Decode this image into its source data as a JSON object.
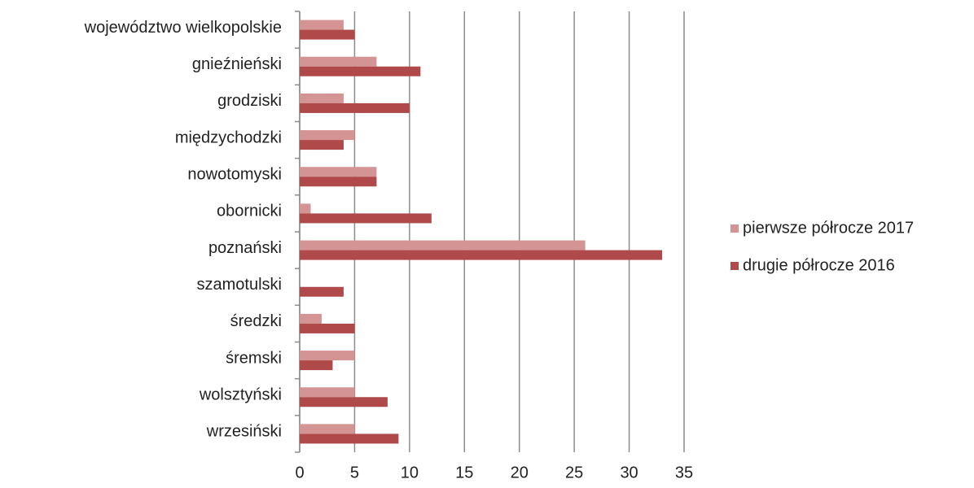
{
  "chart_data": {
    "type": "barh",
    "categories": [
      "województwo wielkopolskie",
      "gnieźnieński",
      "grodziski",
      "międzychodzki",
      "nowotomyski",
      "obornicki",
      "poznański",
      "szamotulski",
      "średzki",
      "śremski",
      "wolsztyński",
      "wrzesiński"
    ],
    "series": [
      {
        "name": "pierwsze półrocze 2017",
        "color": "#d49494",
        "values": [
          4,
          7,
          4,
          5,
          7,
          1,
          26,
          0,
          2,
          5,
          5,
          5
        ]
      },
      {
        "name": "drugie półrocze 2016",
        "color": "#b04a4a",
        "values": [
          5,
          11,
          10,
          4,
          7,
          12,
          33,
          4,
          5,
          3,
          8,
          9
        ]
      }
    ],
    "xlim": [
      0,
      35
    ],
    "xticks": [
      0,
      5,
      10,
      15,
      20,
      25,
      30,
      35
    ],
    "grid": true,
    "legend": "right"
  }
}
